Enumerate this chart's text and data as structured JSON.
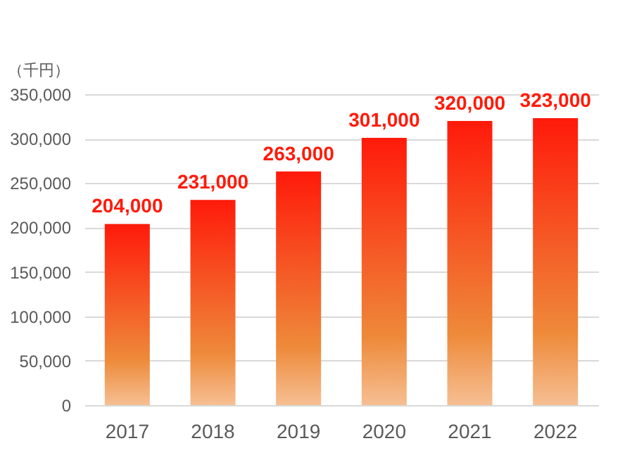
{
  "chart_data": {
    "type": "bar",
    "ylabel": "（千円）",
    "categories": [
      "2017",
      "2018",
      "2019",
      "2020",
      "2021",
      "2022"
    ],
    "values": [
      204000,
      231000,
      263000,
      301000,
      320000,
      323000
    ],
    "value_labels": [
      "204,000",
      "231,000",
      "263,000",
      "301,000",
      "320,000",
      "323,000"
    ],
    "color": "#ff1a0a",
    "ylim": [
      0,
      350000
    ],
    "yticks": [
      0,
      {
        "value": 50000,
        "label": "50,000"
      },
      {
        "value": 100000,
        "label": "100,000"
      },
      {
        "value": 150000,
        "label": "150,000"
      },
      {
        "value": 200000,
        "label": "200,000"
      },
      {
        "value": 250000,
        "label": "250,000"
      },
      {
        "value": 300000,
        "label": "300,000"
      },
      {
        "value": 350000,
        "label": "350,000"
      }
    ],
    "grid": "y"
  }
}
